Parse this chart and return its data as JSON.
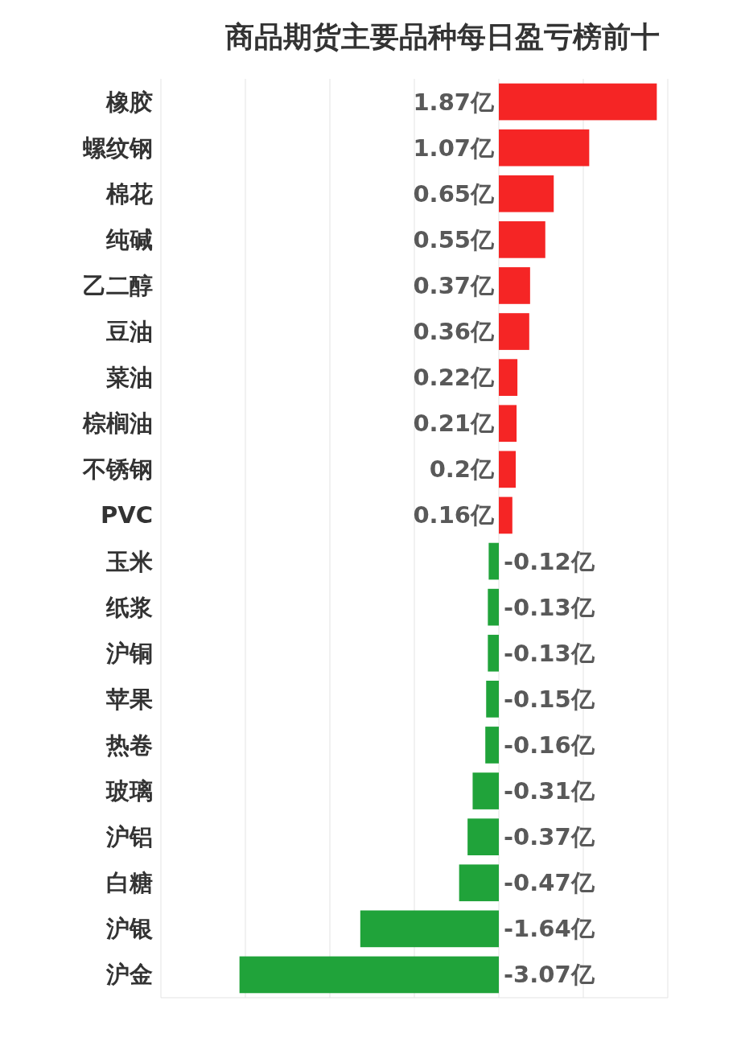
{
  "chart_data": {
    "type": "bar",
    "orientation": "horizontal",
    "title": "商品期货主要品种每日盈亏榜前十",
    "categories": [
      "橡胶",
      "螺纹钢",
      "棉花",
      "纯碱",
      "乙二醇",
      "豆油",
      "菜油",
      "棕榈油",
      "不锈钢",
      "PVC",
      "玉米",
      "纸浆",
      "沪铜",
      "苹果",
      "热卷",
      "玻璃",
      "沪铝",
      "白糖",
      "沪银",
      "沪金"
    ],
    "values": [
      1.87,
      1.07,
      0.65,
      0.55,
      0.37,
      0.36,
      0.22,
      0.21,
      0.2,
      0.16,
      -0.12,
      -0.13,
      -0.13,
      -0.15,
      -0.16,
      -0.31,
      -0.37,
      -0.47,
      -1.64,
      -3.07
    ],
    "value_labels": [
      "1.87亿",
      "1.07亿",
      "0.65亿",
      "0.55亿",
      "0.37亿",
      "0.36亿",
      "0.22亿",
      "0.21亿",
      "0.2亿",
      "0.16亿",
      "-0.12亿",
      "-0.13亿",
      "-0.13亿",
      "-0.15亿",
      "-0.16亿",
      "-0.31亿",
      "-0.37亿",
      "-0.47亿",
      "-1.64亿",
      "-3.07亿"
    ],
    "colors": [
      "#f52525",
      "#f52525",
      "#f52525",
      "#f52525",
      "#f52525",
      "#f52525",
      "#f52525",
      "#f52525",
      "#f52525",
      "#f52525",
      "#20a33a",
      "#20a33a",
      "#20a33a",
      "#20a33a",
      "#20a33a",
      "#20a33a",
      "#20a33a",
      "#20a33a",
      "#20a33a",
      "#20a33a"
    ],
    "xlim": [
      -4,
      2
    ],
    "xticks": [
      {
        "value": -4,
        "label": null
      },
      {
        "value": -3,
        "label": null
      },
      {
        "value": -2,
        "label": null
      },
      {
        "value": -1,
        "label": null
      },
      {
        "value": 0,
        "label": null
      },
      {
        "value": 1,
        "label": null
      },
      {
        "value": 2,
        "label": null
      }
    ],
    "grid": "x"
  }
}
